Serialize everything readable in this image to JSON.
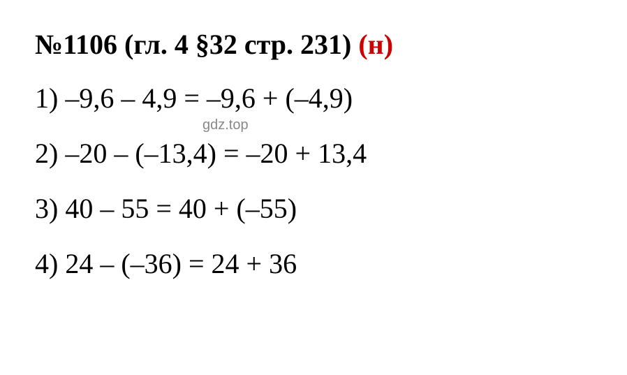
{
  "title": {
    "problem_number": "№1106",
    "chapter_info": " (гл. 4 §32 стр. 231) ",
    "marker": "(н)",
    "marker_color": "#cc0000",
    "text_color": "#000000"
  },
  "equations": [
    {
      "number": "1)",
      "expression": " –9,6 – 4,9 = –9,6 + (–4,9)"
    },
    {
      "number": "2)",
      "expression": " –20 – (–13,4) = –20 + 13,4"
    },
    {
      "number": "3)",
      "expression": " 40 – 55 = 40 + (–55)"
    },
    {
      "number": "4)",
      "expression": " 24 – (–36) = 24 + 36"
    }
  ],
  "watermark": {
    "text": "gdz.top",
    "color": "#888888"
  },
  "styling": {
    "background_color": "#ffffff",
    "font_family": "Times New Roman",
    "title_fontsize": 40,
    "equation_fontsize": 40,
    "watermark_fontsize": 20
  }
}
